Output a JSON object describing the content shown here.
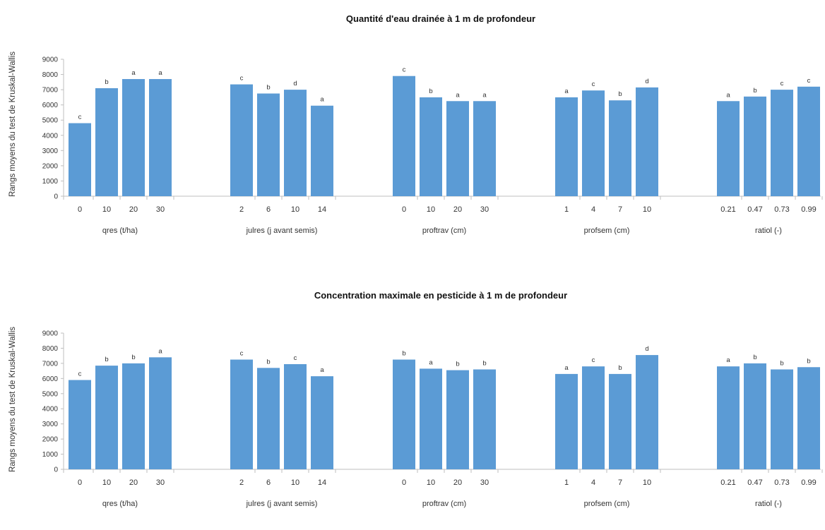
{
  "colors": {
    "bar": "#5b9bd5",
    "axis": "#bfbfbf"
  },
  "chart_data": [
    {
      "type": "bar",
      "title": "Quantité d'eau drainée à 1 m de profondeur",
      "ylabel": "Rangs moyens du test de Kruskal-Wallis",
      "ylim": [
        0,
        9000
      ],
      "yticks": [
        0,
        1000,
        2000,
        3000,
        4000,
        5000,
        6000,
        7000,
        8000,
        9000
      ],
      "grid": false,
      "groups": [
        {
          "label": "qres (t/ha)",
          "categories": [
            "0",
            "10",
            "20",
            "30"
          ],
          "values": [
            4800,
            7100,
            7700,
            7700
          ],
          "letters": [
            "c",
            "b",
            "a",
            "a"
          ]
        },
        {
          "label": "julres (j avant semis)",
          "categories": [
            "2",
            "6",
            "10",
            "14"
          ],
          "values": [
            7350,
            6750,
            7000,
            5950
          ],
          "letters": [
            "c",
            "b",
            "d",
            "a"
          ]
        },
        {
          "label": "proftrav (cm)",
          "categories": [
            "0",
            "10",
            "20",
            "30"
          ],
          "values": [
            7900,
            6500,
            6250,
            6250
          ],
          "letters": [
            "c",
            "b",
            "a",
            "a"
          ]
        },
        {
          "label": "profsem (cm)",
          "categories": [
            "1",
            "4",
            "7",
            "10"
          ],
          "values": [
            6500,
            6950,
            6300,
            7150
          ],
          "letters": [
            "a",
            "c",
            "b",
            "d"
          ]
        },
        {
          "label": "ratiol (-)",
          "categories": [
            "0.21",
            "0.47",
            "0.73",
            "0.99"
          ],
          "values": [
            6250,
            6550,
            7000,
            7200
          ],
          "letters": [
            "a",
            "b",
            "c",
            "c"
          ]
        }
      ]
    },
    {
      "type": "bar",
      "title": "Concentration maximale en pesticide à 1 m de profondeur",
      "ylabel": "Rangs moyens du test de Kruskal-Wallis",
      "ylim": [
        0,
        9000
      ],
      "yticks": [
        0,
        1000,
        2000,
        3000,
        4000,
        5000,
        6000,
        7000,
        8000,
        9000
      ],
      "grid": false,
      "groups": [
        {
          "label": "qres (t/ha)",
          "categories": [
            "0",
            "10",
            "20",
            "30"
          ],
          "values": [
            5900,
            6850,
            7000,
            7400
          ],
          "letters": [
            "c",
            "b",
            "b",
            "a"
          ]
        },
        {
          "label": "julres (j avant semis)",
          "categories": [
            "2",
            "6",
            "10",
            "14"
          ],
          "values": [
            7250,
            6700,
            6950,
            6150
          ],
          "letters": [
            "c",
            "b",
            "c",
            "a"
          ]
        },
        {
          "label": "proftrav (cm)",
          "categories": [
            "0",
            "10",
            "20",
            "30"
          ],
          "values": [
            7250,
            6650,
            6550,
            6600
          ],
          "letters": [
            "b",
            "a",
            "b",
            "b"
          ]
        },
        {
          "label": "profsem (cm)",
          "categories": [
            "1",
            "4",
            "7",
            "10"
          ],
          "values": [
            6300,
            6800,
            6300,
            7550
          ],
          "letters": [
            "a",
            "c",
            "b",
            "d"
          ]
        },
        {
          "label": "ratiol (-)",
          "categories": [
            "0.21",
            "0.47",
            "0.73",
            "0.99"
          ],
          "values": [
            6800,
            7000,
            6600,
            6750
          ],
          "letters": [
            "a",
            "b",
            "b",
            "b"
          ]
        }
      ]
    }
  ]
}
